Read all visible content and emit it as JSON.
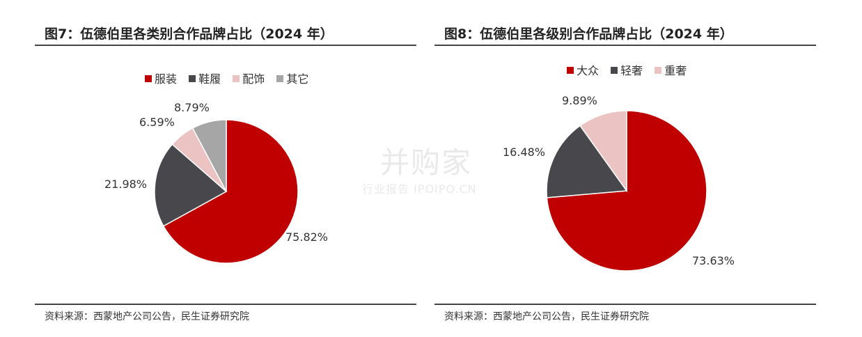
{
  "colors": {
    "red": "#c00000",
    "dark": "#47474c",
    "pink": "#ebc3c3",
    "gray": "#a6a6a6"
  },
  "watermark": {
    "main": "并购家",
    "sub": "行业报告 IPOIPO.CN"
  },
  "chart_data": [
    {
      "type": "pie",
      "title": "图7：伍德伯里各类别合作品牌占比（2024 年）",
      "source": "资料来源：西蒙地产公司公告，民生证券研究院",
      "legend_position": "top",
      "categories": [
        "服装",
        "鞋履",
        "配饰",
        "其它"
      ],
      "values": [
        75.82,
        21.98,
        6.59,
        8.79
      ],
      "labels": [
        "75.82%",
        "21.98%",
        "6.59%",
        "8.79%"
      ],
      "colors": [
        "#c00000",
        "#47474c",
        "#ebc3c3",
        "#a6a6a6"
      ]
    },
    {
      "type": "pie",
      "title": "图8：伍德伯里各级别合作品牌占比（2024 年）",
      "source": "资料来源：西蒙地产公司公告，民生证券研究院",
      "legend_position": "top",
      "categories": [
        "大众",
        "轻奢",
        "重奢"
      ],
      "values": [
        73.63,
        16.48,
        9.89
      ],
      "labels": [
        "73.63%",
        "16.48%",
        "9.89%"
      ],
      "colors": [
        "#c00000",
        "#47474c",
        "#ebc3c3"
      ]
    }
  ]
}
